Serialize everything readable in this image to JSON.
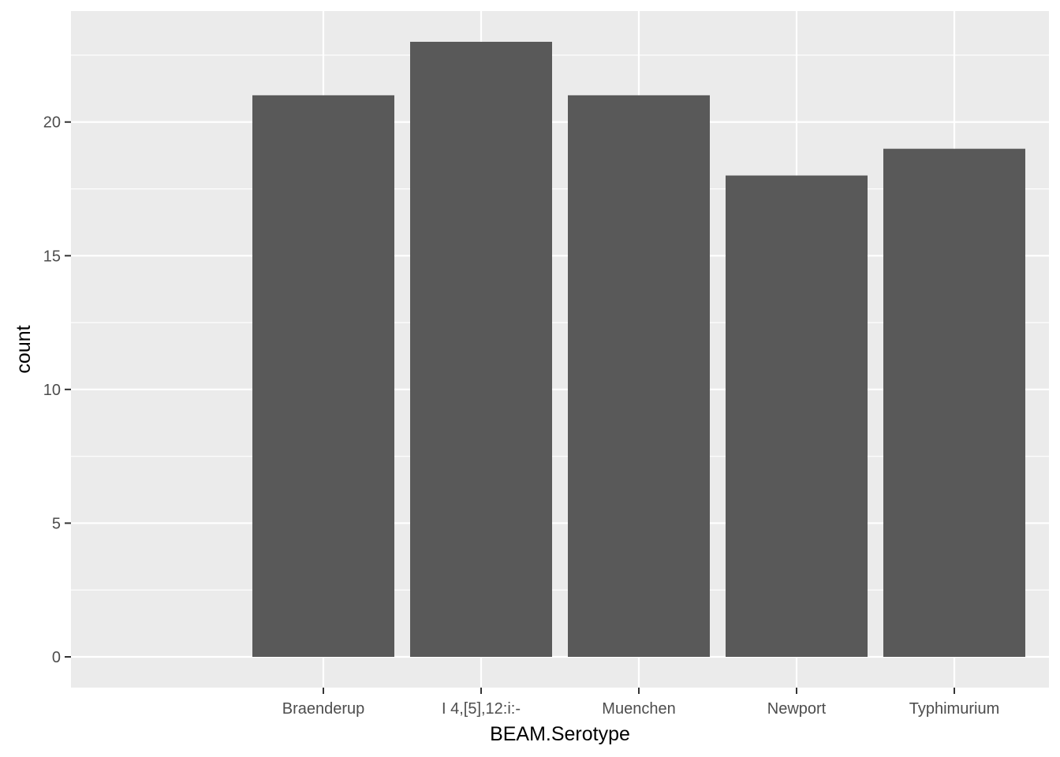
{
  "chart_data": {
    "type": "bar",
    "title": "",
    "xlabel": "BEAM.Serotype",
    "ylabel": "count",
    "categories": [
      "Braenderup",
      "I 4,[5],12:i:-",
      "Muenchen",
      "Newport",
      "Typhimurium"
    ],
    "values": [
      21,
      23,
      21,
      18,
      19
    ],
    "ylim": [
      -1.15,
      24.15
    ],
    "yticks": [
      0,
      5,
      10,
      15,
      20
    ],
    "ytick_labels": [
      "0",
      "5",
      "10",
      "15",
      "20"
    ],
    "y_minor_ticks": [
      2.5,
      7.5,
      12.5,
      17.5,
      22.5
    ],
    "grid": true,
    "legend": "none",
    "colors": {
      "bar": "#595959",
      "panel": "#ebebeb",
      "grid": "#ffffff",
      "tick_text": "#4d4d4d",
      "axis_title": "#000000",
      "tick_mark": "#333333"
    }
  }
}
